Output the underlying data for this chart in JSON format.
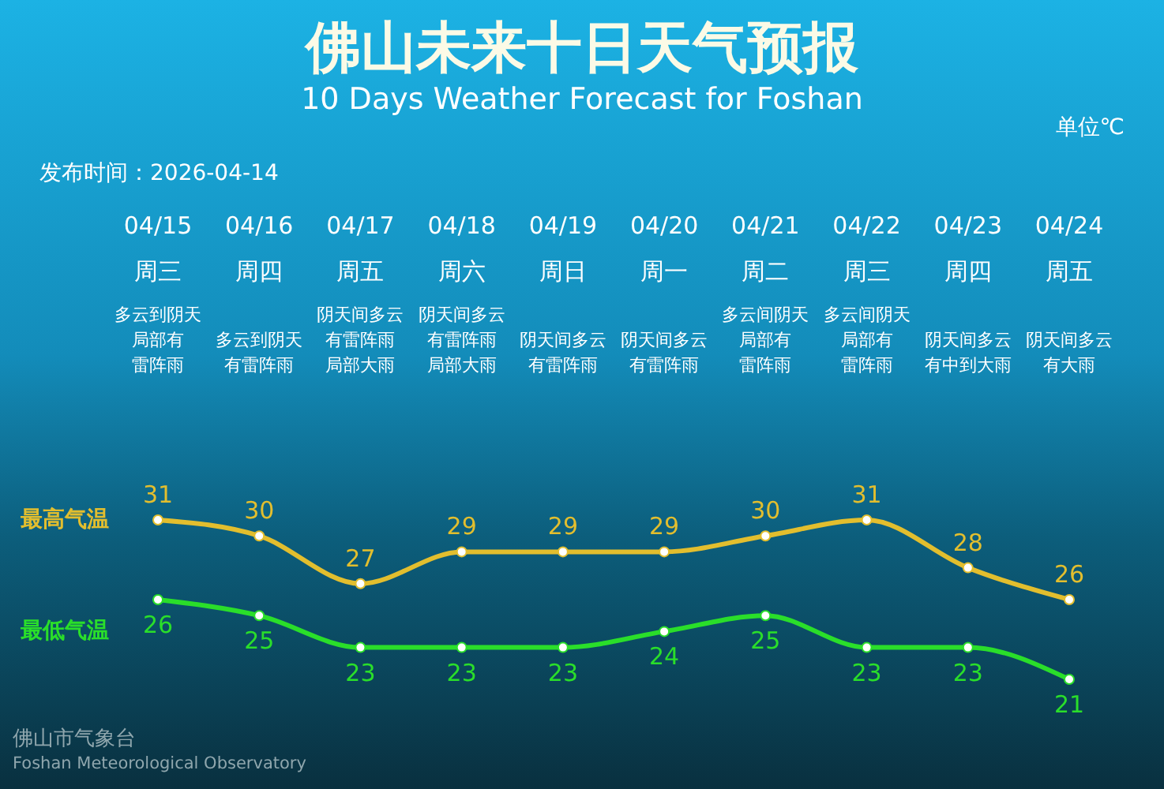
{
  "chart_data": {
    "type": "line",
    "title": "佛山未来十日天气预报",
    "subtitle": "10 Days Weather Forecast for Foshan",
    "annotations": [
      "单位℃",
      "发布时间：2026-04-14",
      "周三",
      "周四",
      "周五",
      "周六",
      "周日",
      "周一",
      "周二",
      "周三",
      "周四",
      "周五",
      "多云到阴天局部有雷阵雨",
      "多云到阴天有雷阵雨",
      "阴天间多云有雷阵雨局部大雨",
      "阴天间多云有雷阵雨局部大雨",
      "阴天间多云有雷阵雨",
      "阴天间多云有雷阵雨",
      "多云间阴天局部有雷阵雨",
      "多云间阴天局部有雷阵雨",
      "阴天间多云有中到大雨",
      "阴天间多云有大雨",
      "佛山市气象台",
      "Foshan Meteorological Observatory"
    ],
    "categories": [
      "04/15",
      "04/16",
      "04/17",
      "04/18",
      "04/19",
      "04/20",
      "04/21",
      "04/22",
      "04/23",
      "04/24"
    ],
    "series": [
      {
        "name": "最高气温",
        "color": "#e2be2e",
        "values": [
          31,
          30,
          27,
          29,
          29,
          29,
          30,
          31,
          28,
          26
        ]
      },
      {
        "name": "最低气温",
        "color": "#2ade2a",
        "values": [
          26,
          25,
          23,
          23,
          23,
          24,
          25,
          23,
          23,
          21
        ]
      }
    ],
    "data_labels": true,
    "marker": "circle",
    "line_style": "solid"
  }
}
